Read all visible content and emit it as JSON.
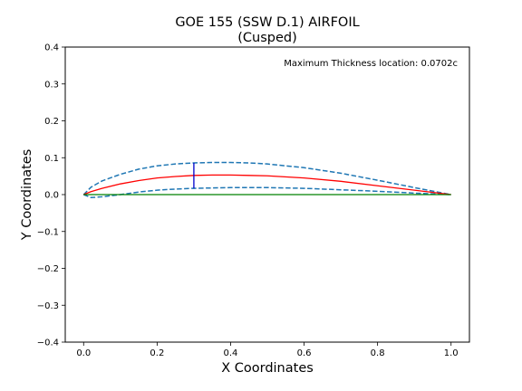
{
  "chart_data": {
    "type": "line",
    "title": "GOE 155 (SSW D.1) AIRFOIL",
    "subtitle": "(Cusped)",
    "xlabel": "X Coordinates",
    "ylabel": "Y Coordinates",
    "xlim": [
      -0.05,
      1.05
    ],
    "ylim": [
      -0.4,
      0.4
    ],
    "grid": false,
    "x_ticks": [
      "0.0",
      "0.2",
      "0.4",
      "0.6",
      "0.8",
      "1.0"
    ],
    "x_tick_values": [
      0.0,
      0.2,
      0.4,
      0.6,
      0.8,
      1.0
    ],
    "y_ticks": [
      "0.4",
      "0.3",
      "0.2",
      "0.1",
      "0.0",
      "−0.1",
      "−0.2",
      "−0.3",
      "−0.4"
    ],
    "y_tick_values": [
      0.4,
      0.3,
      0.2,
      0.1,
      0.0,
      -0.1,
      -0.2,
      -0.3,
      -0.4
    ],
    "annotation": "Maximum Thickness location: 0.0702c",
    "series": [
      {
        "color": "#1f77b4",
        "style": "dashed",
        "x": [
          0.0,
          0.02,
          0.05,
          0.1,
          0.15,
          0.2,
          0.25,
          0.3,
          0.35,
          0.4,
          0.45,
          0.5,
          0.6,
          0.7,
          0.8,
          0.9,
          1.0
        ],
        "y": [
          0.0,
          0.02,
          0.037,
          0.055,
          0.069,
          0.078,
          0.083,
          0.086,
          0.087,
          0.087,
          0.086,
          0.083,
          0.073,
          0.058,
          0.039,
          0.019,
          0.0
        ]
      },
      {
        "color": "#1f77b4",
        "style": "dashed",
        "x": [
          0.0,
          0.02,
          0.05,
          0.1,
          0.15,
          0.2,
          0.25,
          0.3,
          0.35,
          0.4,
          0.5,
          0.6,
          0.7,
          0.8,
          0.9,
          1.0
        ],
        "y": [
          0.0,
          -0.008,
          -0.006,
          0.0,
          0.007,
          0.012,
          0.015,
          0.017,
          0.018,
          0.019,
          0.019,
          0.017,
          0.013,
          0.009,
          0.004,
          0.0
        ]
      },
      {
        "color": "#ff0000",
        "style": "solid",
        "x": [
          0.0,
          0.02,
          0.05,
          0.1,
          0.15,
          0.2,
          0.25,
          0.3,
          0.35,
          0.4,
          0.45,
          0.5,
          0.6,
          0.7,
          0.8,
          0.9,
          1.0
        ],
        "y": [
          0.0,
          0.008,
          0.017,
          0.029,
          0.038,
          0.045,
          0.049,
          0.052,
          0.053,
          0.053,
          0.052,
          0.051,
          0.045,
          0.036,
          0.024,
          0.012,
          0.0
        ]
      },
      {
        "color": "#008000",
        "style": "solid",
        "x": [
          0.0,
          1.0
        ],
        "y": [
          0.0,
          0.0
        ]
      },
      {
        "color": "#0000cc",
        "style": "solid",
        "x": [
          0.3,
          0.3
        ],
        "y": [
          0.017,
          0.086
        ]
      }
    ]
  }
}
